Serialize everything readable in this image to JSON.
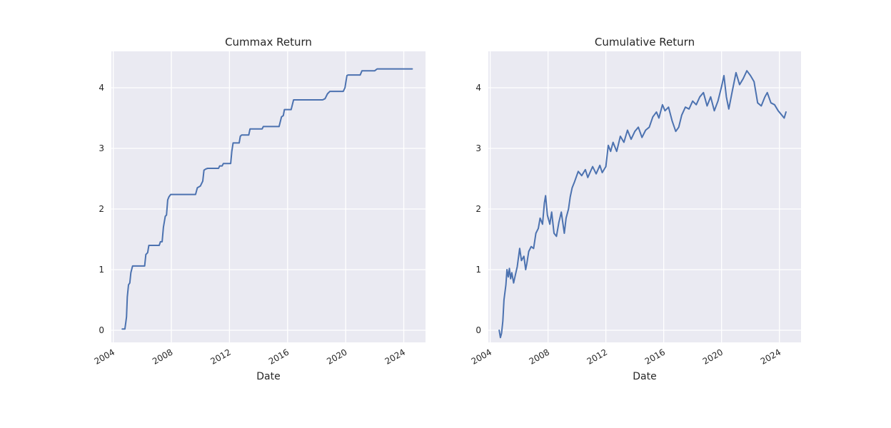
{
  "chart_data": [
    {
      "type": "line",
      "title": "Cummax Return",
      "xlabel": "Date",
      "ylabel": "",
      "grid": true,
      "legend": "none",
      "xlim": [
        "2003-11-15",
        "2025-07-01"
      ],
      "ylim": [
        -0.2,
        4.6
      ],
      "x_ticks": [
        "2004",
        "2008",
        "2012",
        "2016",
        "2020",
        "2024"
      ],
      "y_ticks": [
        0,
        1,
        2,
        3,
        4
      ],
      "series": [
        {
          "color": "#4c72b0",
          "points": [
            [
              "2004-08-15",
              0.02
            ],
            [
              "2004-10-20",
              0.02
            ],
            [
              "2004-11-10",
              0.12
            ],
            [
              "2004-12-01",
              0.22
            ],
            [
              "2004-12-20",
              0.55
            ],
            [
              "2005-01-20",
              0.75
            ],
            [
              "2005-02-20",
              0.78
            ],
            [
              "2005-03-20",
              0.95
            ],
            [
              "2005-05-01",
              1.06
            ],
            [
              "2005-06-01",
              1.06
            ],
            [
              "2006-03-01",
              1.06
            ],
            [
              "2006-04-01",
              1.25
            ],
            [
              "2006-05-15",
              1.28
            ],
            [
              "2006-06-15",
              1.4
            ],
            [
              "2006-07-01",
              1.4
            ],
            [
              "2007-03-01",
              1.4
            ],
            [
              "2007-04-01",
              1.46
            ],
            [
              "2007-05-15",
              1.46
            ],
            [
              "2007-06-15",
              1.7
            ],
            [
              "2007-08-01",
              1.88
            ],
            [
              "2007-09-01",
              1.9
            ],
            [
              "2007-10-01",
              2.15
            ],
            [
              "2007-11-01",
              2.2
            ],
            [
              "2007-12-15",
              2.24
            ],
            [
              "2008-02-01",
              2.24
            ],
            [
              "2009-09-01",
              2.24
            ],
            [
              "2009-10-15",
              2.35
            ],
            [
              "2010-01-01",
              2.38
            ],
            [
              "2010-03-01",
              2.46
            ],
            [
              "2010-04-01",
              2.64
            ],
            [
              "2010-05-15",
              2.66
            ],
            [
              "2010-07-01",
              2.67
            ],
            [
              "2011-04-01",
              2.67
            ],
            [
              "2011-05-01",
              2.71
            ],
            [
              "2011-07-01",
              2.71
            ],
            [
              "2011-08-01",
              2.75
            ],
            [
              "2012-02-01",
              2.75
            ],
            [
              "2012-03-01",
              2.95
            ],
            [
              "2012-04-01",
              3.09
            ],
            [
              "2012-05-01",
              3.09
            ],
            [
              "2012-09-01",
              3.09
            ],
            [
              "2012-10-01",
              3.2
            ],
            [
              "2012-11-01",
              3.22
            ],
            [
              "2013-05-01",
              3.22
            ],
            [
              "2013-06-01",
              3.32
            ],
            [
              "2014-04-01",
              3.32
            ],
            [
              "2014-05-01",
              3.36
            ],
            [
              "2015-06-01",
              3.36
            ],
            [
              "2015-08-01",
              3.52
            ],
            [
              "2015-09-15",
              3.54
            ],
            [
              "2015-10-15",
              3.64
            ],
            [
              "2016-04-01",
              3.64
            ],
            [
              "2016-06-01",
              3.8
            ],
            [
              "2018-06-01",
              3.8
            ],
            [
              "2018-08-01",
              3.82
            ],
            [
              "2018-10-01",
              3.9
            ],
            [
              "2018-12-01",
              3.94
            ],
            [
              "2019-11-01",
              3.94
            ],
            [
              "2019-12-15",
              4.0
            ],
            [
              "2020-02-01",
              4.2
            ],
            [
              "2020-03-01",
              4.21
            ],
            [
              "2021-01-01",
              4.21
            ],
            [
              "2021-02-15",
              4.28
            ],
            [
              "2022-01-01",
              4.28
            ],
            [
              "2022-03-01",
              4.31
            ],
            [
              "2024-08-01",
              4.31
            ]
          ]
        }
      ]
    },
    {
      "type": "line",
      "title": "Cumulative Return",
      "xlabel": "Date",
      "ylabel": "",
      "grid": true,
      "legend": "none",
      "xlim": [
        "2003-11-15",
        "2025-07-01"
      ],
      "ylim": [
        -0.2,
        4.6
      ],
      "x_ticks": [
        "2004",
        "2008",
        "2012",
        "2016",
        "2020",
        "2024"
      ],
      "y_ticks": [
        0,
        1,
        2,
        3,
        4
      ],
      "series": [
        {
          "color": "#4c72b0",
          "points": [
            [
              "2004-08-15",
              0.0
            ],
            [
              "2004-09-15",
              -0.12
            ],
            [
              "2004-10-15",
              -0.05
            ],
            [
              "2004-11-15",
              0.15
            ],
            [
              "2004-12-15",
              0.5
            ],
            [
              "2005-02-01",
              0.75
            ],
            [
              "2005-03-01",
              1.0
            ],
            [
              "2005-04-01",
              0.88
            ],
            [
              "2005-05-01",
              1.02
            ],
            [
              "2005-06-01",
              0.85
            ],
            [
              "2005-07-01",
              0.95
            ],
            [
              "2005-08-15",
              0.78
            ],
            [
              "2005-10-01",
              0.92
            ],
            [
              "2005-11-15",
              1.05
            ],
            [
              "2006-01-15",
              1.35
            ],
            [
              "2006-03-01",
              1.15
            ],
            [
              "2006-05-01",
              1.22
            ],
            [
              "2006-06-15",
              1.0
            ],
            [
              "2006-07-15",
              1.1
            ],
            [
              "2006-09-01",
              1.3
            ],
            [
              "2006-11-01",
              1.38
            ],
            [
              "2007-01-01",
              1.35
            ],
            [
              "2007-03-01",
              1.6
            ],
            [
              "2007-05-01",
              1.68
            ],
            [
              "2007-06-15",
              1.85
            ],
            [
              "2007-08-15",
              1.75
            ],
            [
              "2007-10-01",
              2.1
            ],
            [
              "2007-11-01",
              2.22
            ],
            [
              "2007-12-15",
              1.9
            ],
            [
              "2008-02-15",
              1.75
            ],
            [
              "2008-04-01",
              1.95
            ],
            [
              "2008-06-01",
              1.6
            ],
            [
              "2008-08-01",
              1.55
            ],
            [
              "2008-10-01",
              1.78
            ],
            [
              "2008-12-01",
              1.95
            ],
            [
              "2009-02-15",
              1.6
            ],
            [
              "2009-04-01",
              1.85
            ],
            [
              "2009-06-01",
              2.0
            ],
            [
              "2009-07-15",
              2.2
            ],
            [
              "2009-09-01",
              2.35
            ],
            [
              "2009-11-01",
              2.45
            ],
            [
              "2010-02-01",
              2.62
            ],
            [
              "2010-05-01",
              2.55
            ],
            [
              "2010-08-01",
              2.65
            ],
            [
              "2010-10-01",
              2.52
            ],
            [
              "2011-02-01",
              2.7
            ],
            [
              "2011-05-01",
              2.58
            ],
            [
              "2011-08-01",
              2.72
            ],
            [
              "2011-10-01",
              2.6
            ],
            [
              "2012-01-01",
              2.7
            ],
            [
              "2012-03-01",
              3.05
            ],
            [
              "2012-05-01",
              2.95
            ],
            [
              "2012-07-01",
              3.1
            ],
            [
              "2012-10-01",
              2.95
            ],
            [
              "2013-01-01",
              3.2
            ],
            [
              "2013-04-01",
              3.1
            ],
            [
              "2013-07-01",
              3.3
            ],
            [
              "2013-10-01",
              3.15
            ],
            [
              "2014-01-01",
              3.28
            ],
            [
              "2014-04-01",
              3.35
            ],
            [
              "2014-07-01",
              3.18
            ],
            [
              "2014-10-01",
              3.3
            ],
            [
              "2015-01-01",
              3.35
            ],
            [
              "2015-04-01",
              3.52
            ],
            [
              "2015-07-01",
              3.6
            ],
            [
              "2015-09-01",
              3.5
            ],
            [
              "2015-12-01",
              3.72
            ],
            [
              "2016-02-01",
              3.62
            ],
            [
              "2016-05-01",
              3.68
            ],
            [
              "2016-08-01",
              3.45
            ],
            [
              "2016-11-01",
              3.28
            ],
            [
              "2017-01-15",
              3.35
            ],
            [
              "2017-04-01",
              3.55
            ],
            [
              "2017-07-01",
              3.68
            ],
            [
              "2017-10-01",
              3.65
            ],
            [
              "2018-01-01",
              3.78
            ],
            [
              "2018-04-01",
              3.72
            ],
            [
              "2018-07-01",
              3.85
            ],
            [
              "2018-10-01",
              3.92
            ],
            [
              "2019-01-01",
              3.7
            ],
            [
              "2019-04-01",
              3.85
            ],
            [
              "2019-07-01",
              3.62
            ],
            [
              "2019-10-01",
              3.78
            ],
            [
              "2020-01-01",
              4.02
            ],
            [
              "2020-03-01",
              4.2
            ],
            [
              "2020-05-01",
              3.85
            ],
            [
              "2020-07-01",
              3.65
            ],
            [
              "2020-10-01",
              3.95
            ],
            [
              "2021-01-01",
              4.25
            ],
            [
              "2021-04-01",
              4.05
            ],
            [
              "2021-07-01",
              4.15
            ],
            [
              "2021-10-01",
              4.28
            ],
            [
              "2022-01-01",
              4.2
            ],
            [
              "2022-04-01",
              4.1
            ],
            [
              "2022-07-01",
              3.75
            ],
            [
              "2022-10-01",
              3.7
            ],
            [
              "2023-01-01",
              3.85
            ],
            [
              "2023-03-01",
              3.92
            ],
            [
              "2023-06-01",
              3.75
            ],
            [
              "2023-09-01",
              3.72
            ],
            [
              "2023-12-01",
              3.62
            ],
            [
              "2024-03-01",
              3.55
            ],
            [
              "2024-05-01",
              3.5
            ],
            [
              "2024-06-15",
              3.6
            ]
          ]
        }
      ]
    }
  ]
}
